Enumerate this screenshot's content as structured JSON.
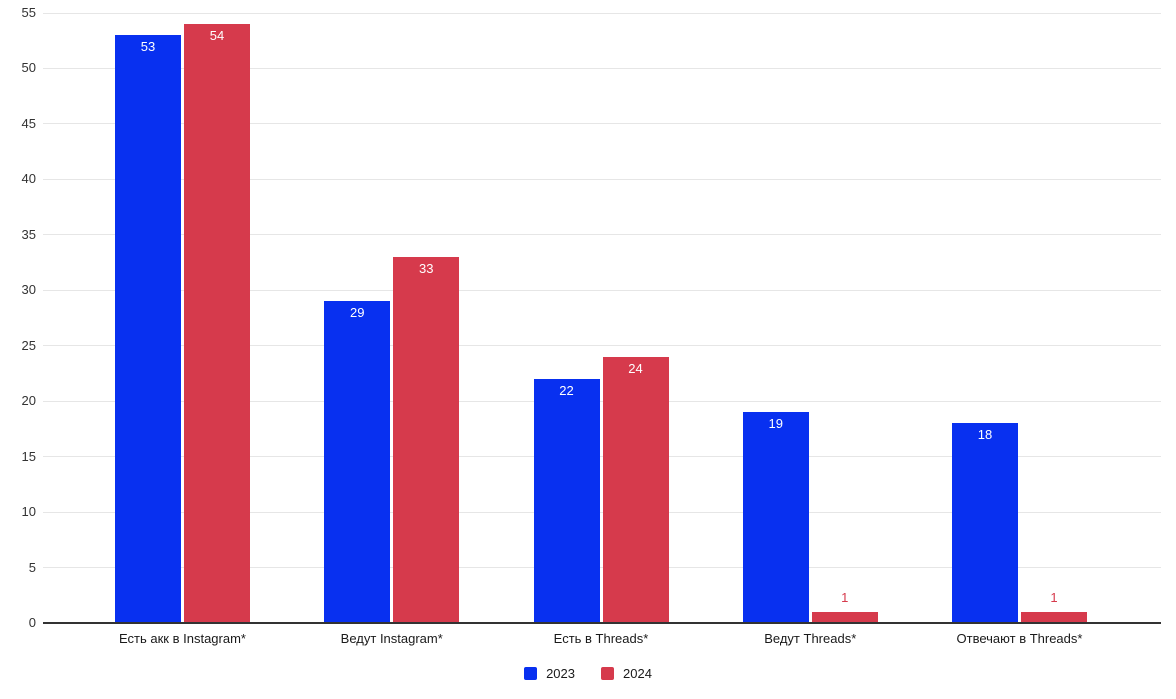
{
  "chart_data": {
    "type": "bar",
    "title": "",
    "xlabel": "",
    "ylabel": "",
    "categories": [
      "Есть акк в Instagram*",
      "Ведут Instagram*",
      "Есть в Threads*",
      "Ведут Threads*",
      "Отвечают в Threads*"
    ],
    "series": [
      {
        "name": "2023",
        "color": "#0830f0",
        "values": [
          53,
          29,
          22,
          19,
          18
        ]
      },
      {
        "name": "2024",
        "color": "#d63a4c",
        "values": [
          54,
          33,
          24,
          1,
          1
        ]
      }
    ],
    "yticks": [
      0,
      5,
      10,
      15,
      20,
      25,
      30,
      35,
      40,
      45,
      50,
      55
    ],
    "ylim": [
      0,
      55
    ],
    "grid": true,
    "legend_position": "bottom",
    "bar_labels": true
  },
  "colors": {
    "background": "#ffffff",
    "gridline": "#e6e6e6",
    "axis_line": "#333333",
    "tick_label": "#333333",
    "category_label": "#1a1a1a",
    "legend_label": "#1a1a1a",
    "bar_label_inside": "#ffffff"
  }
}
